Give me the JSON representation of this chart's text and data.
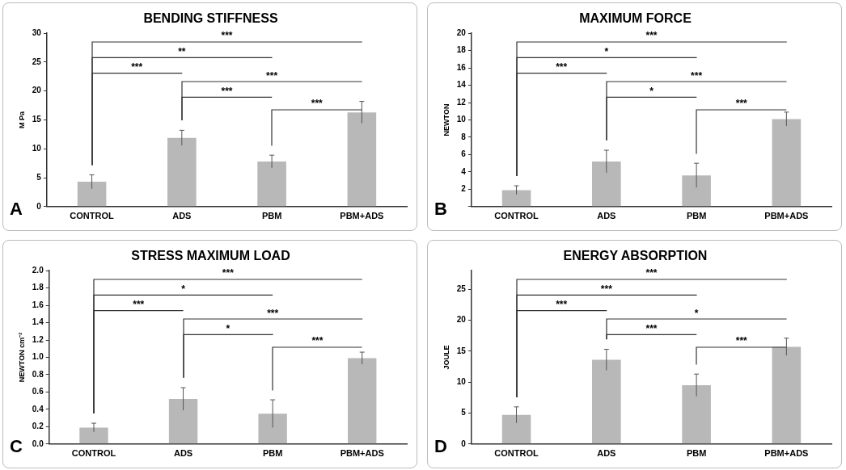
{
  "chart_data": [
    {
      "type": "bar",
      "title": "BENDING STIFFNESS",
      "ylabel": "M Pa",
      "categories": [
        "CONTROL",
        "ADS",
        "PBM",
        "PBM+ADS"
      ],
      "values": [
        4.3,
        11.9,
        7.8,
        16.3
      ],
      "errors": [
        1.2,
        1.3,
        1.1,
        1.9
      ],
      "color": "#b8b8b8",
      "ylim": [
        0,
        30
      ],
      "yticks": [
        0,
        5,
        10,
        15,
        20,
        25,
        30
      ],
      "grid": false,
      "legend": false,
      "annotations": [
        "A",
        "***",
        "**",
        "***",
        "***",
        "***",
        "***"
      ]
    },
    {
      "type": "bar",
      "title": "MAXIMUM FORCE",
      "ylabel": "NEWTON",
      "categories": [
        "CONTROL",
        "ADS",
        "PBM",
        "PBM+ADS"
      ],
      "values": [
        1.9,
        5.2,
        3.6,
        10.1
      ],
      "errors": [
        0.5,
        1.3,
        1.4,
        0.8
      ],
      "color": "#b8b8b8",
      "ylim": [
        0,
        20
      ],
      "yticks": [
        {
          "value": 0,
          "label": null
        },
        2,
        4,
        6,
        8,
        10,
        12,
        14,
        16,
        18,
        20
      ],
      "grid": false,
      "legend": false,
      "annotations": [
        "B",
        "***",
        "*",
        "***",
        "***",
        "*",
        "***"
      ]
    },
    {
      "type": "bar",
      "title": "STRESS MAXIMUM LOAD",
      "ylabel": "NEWTON cm⁻²",
      "categories": [
        "CONTROL",
        "ADS",
        "PBM",
        "PBM+ADS"
      ],
      "values": [
        0.19,
        0.52,
        0.35,
        0.99
      ],
      "errors": [
        0.05,
        0.13,
        0.16,
        0.07
      ],
      "color": "#b8b8b8",
      "ylim": [
        0,
        2
      ],
      "yticks": [
        {
          "value": 0,
          "label": "0.0"
        },
        {
          "value": 0.2,
          "label": "0.2"
        },
        {
          "value": 0.4,
          "label": "0.4"
        },
        {
          "value": 0.6,
          "label": "0.6"
        },
        {
          "value": 0.8,
          "label": "0.8"
        },
        {
          "value": 1,
          "label": "1.0"
        },
        {
          "value": 1.2,
          "label": "1.2"
        },
        {
          "value": 1.4,
          "label": "1.4"
        },
        {
          "value": 1.6,
          "label": "1.6"
        },
        {
          "value": 1.8,
          "label": "1.8"
        },
        {
          "value": 2,
          "label": "2.0"
        }
      ],
      "grid": false,
      "legend": false,
      "annotations": [
        "C",
        "***",
        "*",
        "***",
        "***",
        "*",
        "***"
      ]
    },
    {
      "type": "bar",
      "title": "ENERGY ABSORPTION",
      "ylabel": "JOULE",
      "categories": [
        "CONTROL",
        "ADS",
        "PBM",
        "PBM+ADS"
      ],
      "values": [
        4.7,
        13.6,
        9.5,
        15.7
      ],
      "errors": [
        1.3,
        1.7,
        1.8,
        1.4
      ],
      "color": "#b8b8b8",
      "ylim": [
        0,
        28
      ],
      "yticks": [
        0,
        5,
        10,
        15,
        20,
        25
      ],
      "grid": false,
      "legend": false,
      "annotations": [
        "D",
        "***",
        "***",
        "***",
        "*",
        "***",
        "***"
      ]
    }
  ]
}
